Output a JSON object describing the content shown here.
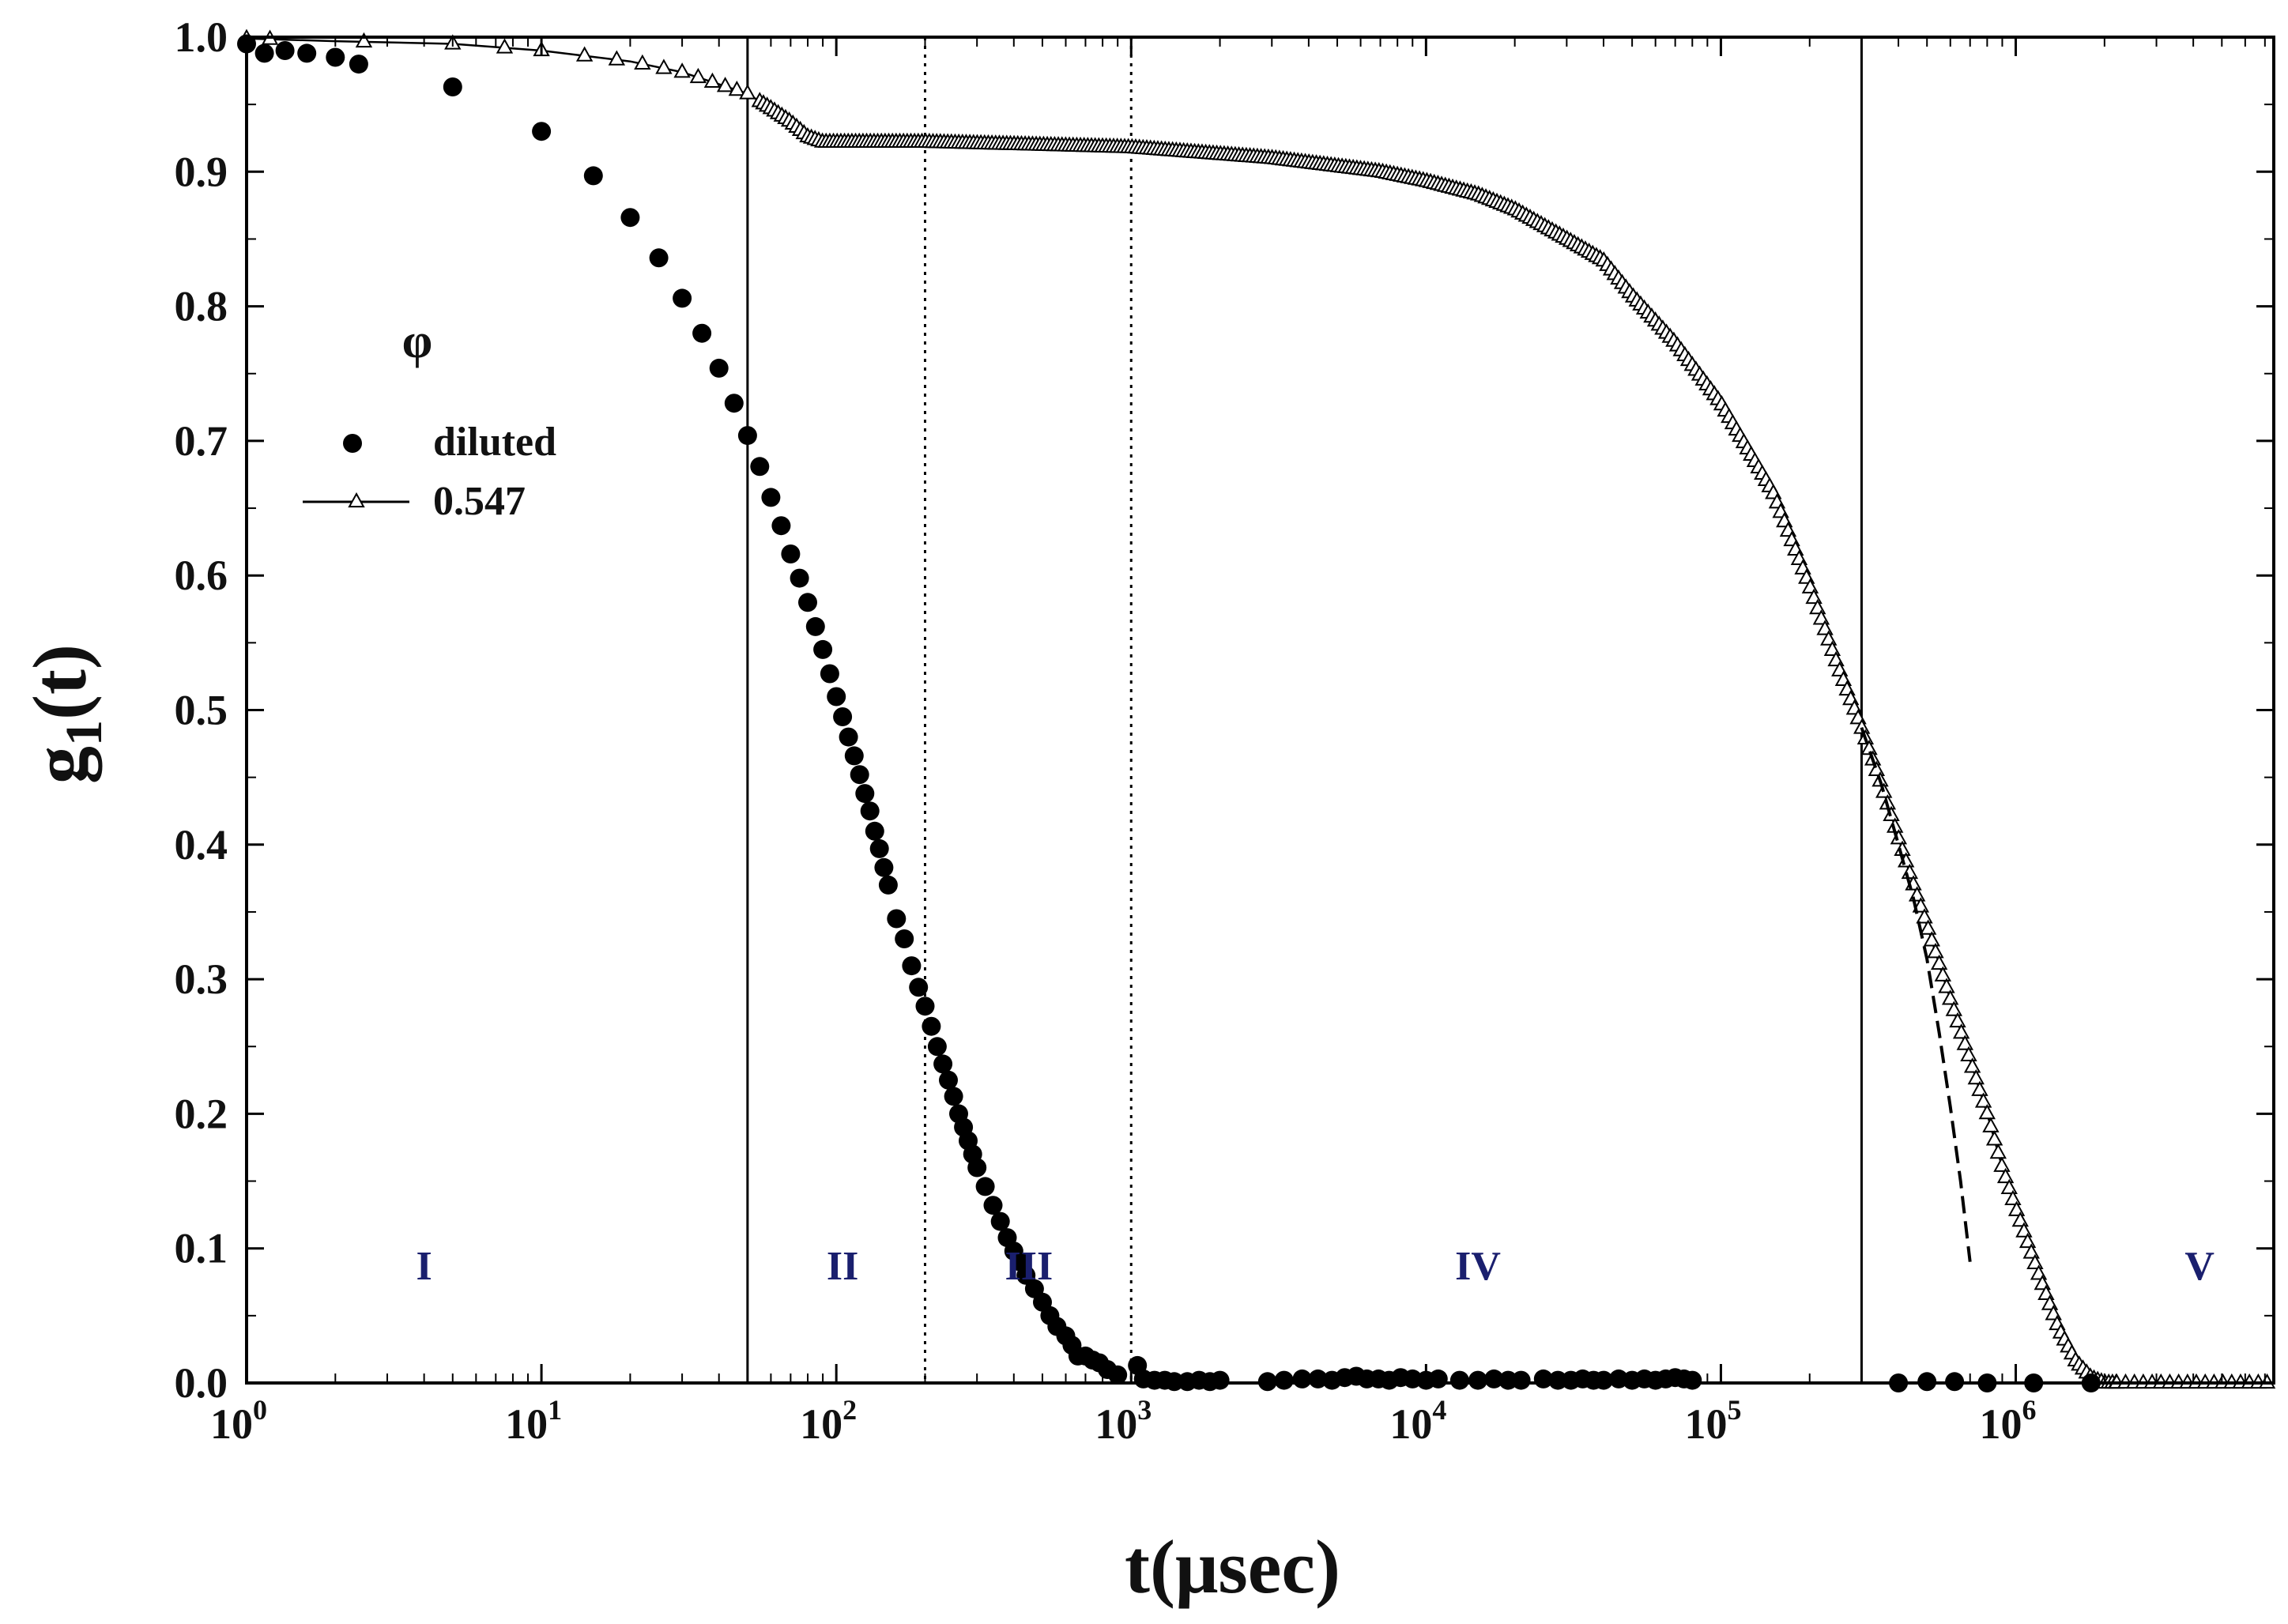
{
  "chart_data": {
    "type": "scatter",
    "title": "",
    "xlabel": "t(μsec)",
    "ylabel_base": "g",
    "ylabel_sub": "1",
    "ylabel_tail": "(t)",
    "xscale": "log",
    "xlim": [
      1,
      7500000
    ],
    "ylim": [
      0,
      1.0
    ],
    "x_ticks": [
      {
        "value": 1,
        "base": "10",
        "exp": "0"
      },
      {
        "value": 10,
        "base": "10",
        "exp": "1"
      },
      {
        "value": 100,
        "base": "10",
        "exp": "2"
      },
      {
        "value": 1000,
        "base": "10",
        "exp": "3"
      },
      {
        "value": 10000,
        "base": "10",
        "exp": "4"
      },
      {
        "value": 100000,
        "base": "10",
        "exp": "5"
      },
      {
        "value": 1000000,
        "base": "10",
        "exp": "6"
      }
    ],
    "y_ticks": [
      {
        "value": 0.0,
        "label": "0.0"
      },
      {
        "value": 0.1,
        "label": "0.1"
      },
      {
        "value": 0.2,
        "label": "0.2"
      },
      {
        "value": 0.3,
        "label": "0.3"
      },
      {
        "value": 0.4,
        "label": "0.4"
      },
      {
        "value": 0.5,
        "label": "0.5"
      },
      {
        "value": 0.6,
        "label": "0.6"
      },
      {
        "value": 0.7,
        "label": "0.7"
      },
      {
        "value": 0.8,
        "label": "0.8"
      },
      {
        "value": 0.9,
        "label": "0.9"
      },
      {
        "value": 1.0,
        "label": "1.0"
      }
    ],
    "legend": {
      "title": "φ",
      "placement": "upper-left",
      "entries": [
        {
          "label": "diluted",
          "marker": "filled-circle"
        },
        {
          "label": "0.547",
          "marker": "open-triangle-line"
        }
      ]
    },
    "region_boundaries": [
      {
        "x": 50,
        "style": "solid"
      },
      {
        "x": 200,
        "style": "dotted"
      },
      {
        "x": 1000,
        "style": "dotted"
      },
      {
        "x": 300000,
        "style": "solid"
      }
    ],
    "region_labels": [
      {
        "label": "I",
        "x": 4,
        "y": 0.077
      },
      {
        "label": "II",
        "x": 105,
        "y": 0.077
      },
      {
        "label": "III",
        "x": 450,
        "y": 0.077
      },
      {
        "label": "IV",
        "x": 15000,
        "y": 0.077
      },
      {
        "label": "V",
        "x": 4200000,
        "y": 0.077
      }
    ],
    "series": [
      {
        "name": "diluted",
        "marker": "filled-circle",
        "points": [
          [
            1.0,
            0.995
          ],
          [
            1.15,
            0.988
          ],
          [
            1.35,
            0.99
          ],
          [
            1.6,
            0.988
          ],
          [
            2.0,
            0.985
          ],
          [
            2.4,
            0.98
          ],
          [
            5,
            0.963
          ],
          [
            10,
            0.93
          ],
          [
            15,
            0.897
          ],
          [
            20,
            0.866
          ],
          [
            25,
            0.836
          ],
          [
            30,
            0.806
          ],
          [
            35,
            0.78
          ],
          [
            40,
            0.754
          ],
          [
            45,
            0.728
          ],
          [
            50,
            0.704
          ],
          [
            55,
            0.681
          ],
          [
            60,
            0.658
          ],
          [
            65,
            0.637
          ],
          [
            70,
            0.616
          ],
          [
            75,
            0.598
          ],
          [
            80,
            0.58
          ],
          [
            85,
            0.562
          ],
          [
            90,
            0.545
          ],
          [
            95,
            0.527
          ],
          [
            100,
            0.51
          ],
          [
            105,
            0.495
          ],
          [
            110,
            0.48
          ],
          [
            115,
            0.466
          ],
          [
            120,
            0.452
          ],
          [
            125,
            0.438
          ],
          [
            130,
            0.425
          ],
          [
            135,
            0.41
          ],
          [
            140,
            0.397
          ],
          [
            145,
            0.383
          ],
          [
            150,
            0.37
          ],
          [
            160,
            0.345
          ],
          [
            170,
            0.33
          ],
          [
            180,
            0.31
          ],
          [
            190,
            0.294
          ],
          [
            200,
            0.28
          ],
          [
            210,
            0.265
          ],
          [
            220,
            0.25
          ],
          [
            230,
            0.237
          ],
          [
            240,
            0.225
          ],
          [
            250,
            0.213
          ],
          [
            260,
            0.2
          ],
          [
            270,
            0.19
          ],
          [
            280,
            0.18
          ],
          [
            290,
            0.17
          ],
          [
            300,
            0.16
          ],
          [
            320,
            0.146
          ],
          [
            340,
            0.132
          ],
          [
            360,
            0.12
          ],
          [
            380,
            0.108
          ],
          [
            400,
            0.098
          ],
          [
            420,
            0.09
          ],
          [
            440,
            0.08
          ],
          [
            470,
            0.07
          ],
          [
            500,
            0.06
          ],
          [
            530,
            0.05
          ],
          [
            560,
            0.042
          ],
          [
            600,
            0.035
          ],
          [
            630,
            0.028
          ],
          [
            660,
            0.02
          ],
          [
            700,
            0.02
          ],
          [
            740,
            0.017
          ],
          [
            780,
            0.015
          ],
          [
            830,
            0.01
          ],
          [
            900,
            0.006
          ],
          [
            1050,
            0.013
          ],
          [
            1100,
            0.003
          ],
          [
            1200,
            0.002
          ],
          [
            1300,
            0.002
          ],
          [
            1400,
            0.001
          ],
          [
            1550,
            0.001
          ],
          [
            1700,
            0.002
          ],
          [
            1850,
            0.001
          ],
          [
            2000,
            0.002
          ],
          [
            2900,
            0.001
          ],
          [
            3300,
            0.002
          ],
          [
            3800,
            0.003
          ],
          [
            4300,
            0.003
          ],
          [
            4800,
            0.002
          ],
          [
            5300,
            0.004
          ],
          [
            5800,
            0.005
          ],
          [
            6300,
            0.003
          ],
          [
            6900,
            0.003
          ],
          [
            7500,
            0.002
          ],
          [
            8200,
            0.004
          ],
          [
            9000,
            0.003
          ],
          [
            10000,
            0.002
          ],
          [
            11000,
            0.003
          ],
          [
            13000,
            0.002
          ],
          [
            15000,
            0.002
          ],
          [
            17000,
            0.003
          ],
          [
            19000,
            0.002
          ],
          [
            21000,
            0.002
          ],
          [
            25000,
            0.003
          ],
          [
            28000,
            0.002
          ],
          [
            31000,
            0.002
          ],
          [
            34000,
            0.003
          ],
          [
            37000,
            0.002
          ],
          [
            40000,
            0.002
          ],
          [
            45000,
            0.003
          ],
          [
            50000,
            0.002
          ],
          [
            55000,
            0.003
          ],
          [
            60000,
            0.002
          ],
          [
            65000,
            0.003
          ],
          [
            70000,
            0.004
          ],
          [
            75000,
            0.003
          ],
          [
            80000,
            0.002
          ],
          [
            400000,
            0.0
          ],
          [
            500000,
            0.001
          ],
          [
            620000,
            0.001
          ],
          [
            800000,
            0.0
          ],
          [
            1150000,
            0.0
          ],
          [
            1800000,
            0.0
          ]
        ]
      },
      {
        "name": "0.547",
        "marker": "open-triangle-line",
        "curve": [
          [
            1.0,
            0.999
          ],
          [
            2.0,
            0.997
          ],
          [
            5.0,
            0.995
          ],
          [
            10,
            0.99
          ],
          [
            20,
            0.982
          ],
          [
            30,
            0.974
          ],
          [
            40,
            0.965
          ],
          [
            50,
            0.958
          ],
          [
            60,
            0.947
          ],
          [
            70,
            0.937
          ],
          [
            80,
            0.926
          ],
          [
            90,
            0.922
          ],
          [
            200,
            0.922
          ],
          [
            1000,
            0.918
          ],
          [
            3000,
            0.91
          ],
          [
            7000,
            0.9
          ],
          [
            10000,
            0.893
          ],
          [
            15000,
            0.883
          ],
          [
            20000,
            0.872
          ],
          [
            30000,
            0.85
          ],
          [
            40000,
            0.834
          ],
          [
            50000,
            0.808
          ],
          [
            70000,
            0.773
          ],
          [
            100000,
            0.728
          ],
          [
            150000,
            0.662
          ],
          [
            200000,
            0.592
          ],
          [
            250000,
            0.532
          ],
          [
            300000,
            0.487
          ],
          [
            350000,
            0.445
          ],
          [
            400000,
            0.405
          ],
          [
            450000,
            0.37
          ],
          [
            500000,
            0.34
          ],
          [
            600000,
            0.285
          ],
          [
            700000,
            0.24
          ],
          [
            800000,
            0.2
          ],
          [
            900000,
            0.16
          ],
          [
            1000000,
            0.13
          ],
          [
            1200000,
            0.08
          ],
          [
            1400000,
            0.04
          ],
          [
            1600000,
            0.016
          ],
          [
            1800000,
            0.004
          ],
          [
            2000000,
            0.0
          ],
          [
            7500000,
            0.0
          ]
        ]
      }
    ],
    "fit_curve": {
      "style": "dashed",
      "points": [
        [
          300000,
          0.487
        ],
        [
          350000,
          0.445
        ],
        [
          400000,
          0.4
        ],
        [
          450000,
          0.36
        ],
        [
          500000,
          0.315
        ],
        [
          550000,
          0.26
        ],
        [
          600000,
          0.205
        ],
        [
          650000,
          0.15
        ],
        [
          700000,
          0.09
        ]
      ]
    }
  }
}
